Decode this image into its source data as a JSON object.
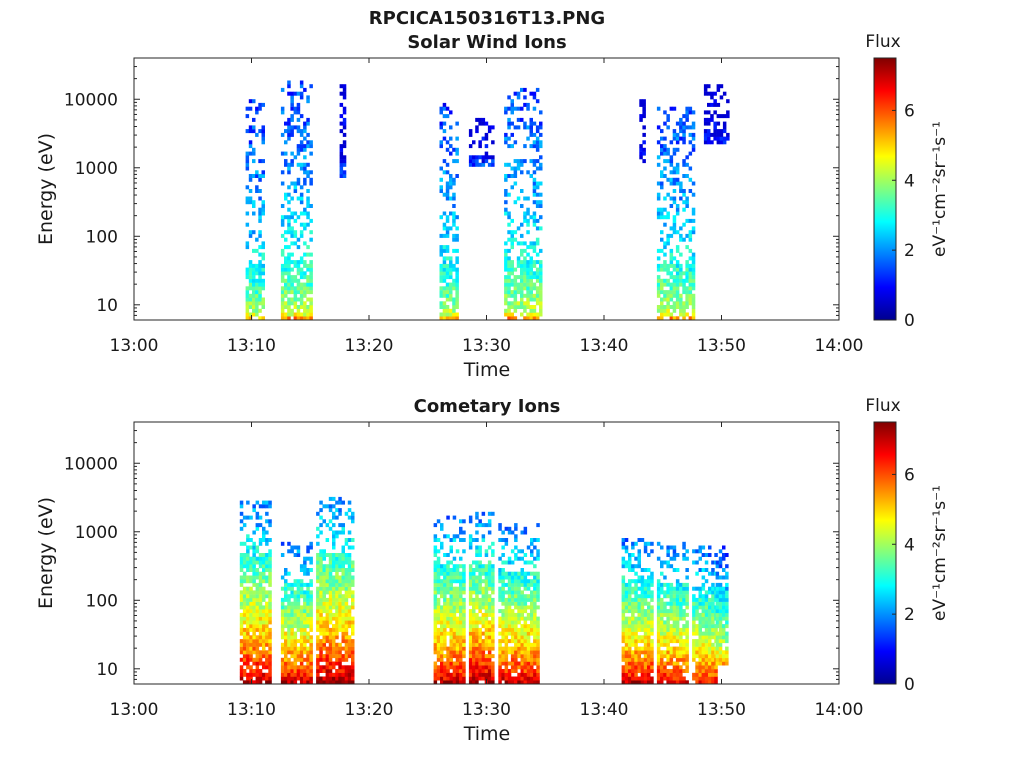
{
  "figure_title": "RPCICA150316T13.PNG",
  "chart_data": [
    {
      "type": "heatmap",
      "title": "Solar Wind Ions",
      "xlabel": "Time",
      "ylabel": "Energy (eV)",
      "x_ticks": [
        "13:00",
        "13:10",
        "13:20",
        "13:30",
        "13:40",
        "13:50",
        "14:00"
      ],
      "xlim": [
        "13:00",
        "14:00"
      ],
      "yscale": "log",
      "ylim": [
        6,
        40000
      ],
      "y_ticks": [
        "10",
        "100",
        "1000",
        "10000"
      ],
      "colorbar": {
        "label": "Flux",
        "unit": "eV⁻¹cm⁻²sr⁻¹s⁻¹",
        "range": [
          0,
          7.5
        ],
        "ticks": [
          "0",
          "2",
          "4",
          "6"
        ]
      },
      "bursts": [
        {
          "start": "13:09:30",
          "end": "13:11:00",
          "e_min": 6,
          "e_max": 10000,
          "peak_flux": 5.2
        },
        {
          "start": "13:12:30",
          "end": "13:15:00",
          "e_min": 6,
          "e_max": 17000,
          "peak_flux": 5.5
        },
        {
          "start": "13:17:30",
          "end": "13:18:00",
          "e_min": 700,
          "e_max": 16000,
          "peak_flux": 1.5
        },
        {
          "start": "13:26:00",
          "end": "13:27:30",
          "e_min": 6,
          "e_max": 9000,
          "peak_flux": 5.3
        },
        {
          "start": "13:28:30",
          "end": "13:30:30",
          "e_min": 1000,
          "e_max": 5000,
          "peak_flux": 1.8
        },
        {
          "start": "13:31:30",
          "end": "13:34:30",
          "e_min": 6,
          "e_max": 13000,
          "peak_flux": 5.5
        },
        {
          "start": "13:43:00",
          "end": "13:43:30",
          "e_min": 1000,
          "e_max": 9000,
          "peak_flux": 1.2
        },
        {
          "start": "13:44:30",
          "end": "13:47:30",
          "e_min": 6,
          "e_max": 7000,
          "peak_flux": 5.6
        },
        {
          "start": "13:48:30",
          "end": "13:50:30",
          "e_min": 2000,
          "e_max": 16000,
          "peak_flux": 1.3
        }
      ]
    },
    {
      "type": "heatmap",
      "title": "Cometary Ions",
      "xlabel": "Time",
      "ylabel": "Energy (eV)",
      "x_ticks": [
        "13:00",
        "13:10",
        "13:20",
        "13:30",
        "13:40",
        "13:50",
        "14:00"
      ],
      "xlim": [
        "13:00",
        "14:00"
      ],
      "yscale": "log",
      "ylim": [
        6,
        40000
      ],
      "y_ticks": [
        "10",
        "100",
        "1000",
        "10000"
      ],
      "colorbar": {
        "label": "Flux",
        "unit": "eV⁻¹cm⁻²sr⁻¹s⁻¹",
        "range": [
          0,
          7.5
        ],
        "ticks": [
          "0",
          "2",
          "4",
          "6"
        ]
      },
      "bursts": [
        {
          "start": "13:09:00",
          "end": "13:11:30",
          "e_min": 6,
          "e_max": 2800,
          "peak_flux": 7.2
        },
        {
          "start": "13:12:30",
          "end": "13:15:00",
          "e_min": 6,
          "e_max": 700,
          "peak_flux": 7.0
        },
        {
          "start": "13:15:30",
          "end": "13:18:30",
          "e_min": 6,
          "e_max": 3200,
          "peak_flux": 7.4
        },
        {
          "start": "13:25:30",
          "end": "13:28:00",
          "e_min": 6,
          "e_max": 1700,
          "peak_flux": 7.0
        },
        {
          "start": "13:28:30",
          "end": "13:30:30",
          "e_min": 6,
          "e_max": 1800,
          "peak_flux": 7.3
        },
        {
          "start": "13:31:00",
          "end": "13:34:30",
          "e_min": 6,
          "e_max": 1200,
          "peak_flux": 7.0
        },
        {
          "start": "13:41:30",
          "end": "13:44:00",
          "e_min": 6,
          "e_max": 800,
          "peak_flux": 7.0
        },
        {
          "start": "13:44:30",
          "end": "13:47:00",
          "e_min": 6,
          "e_max": 700,
          "peak_flux": 6.8
        },
        {
          "start": "13:47:30",
          "end": "13:49:30",
          "e_min": 6,
          "e_max": 600,
          "peak_flux": 6.5
        },
        {
          "start": "13:49:30",
          "end": "13:50:30",
          "e_min": 10,
          "e_max": 600,
          "peak_flux": 5.5
        }
      ]
    }
  ]
}
